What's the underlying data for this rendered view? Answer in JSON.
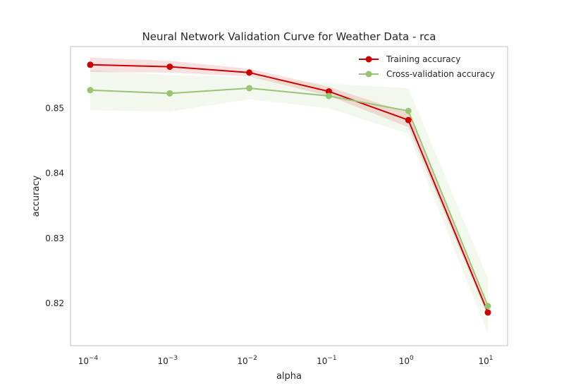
{
  "chart_data": {
    "type": "line",
    "title": "Neural Network Validation Curve for Weather Data - rca",
    "xlabel": "alpha",
    "ylabel": "accuracy",
    "x": [
      0.0001,
      0.001,
      0.01,
      0.1,
      1,
      10
    ],
    "x_scale": "log",
    "x_tick_exponents": [
      "-4",
      "-3",
      "-2",
      "-1",
      "0",
      "1"
    ],
    "x_tick_base": "10",
    "ylim": [
      0.8135,
      0.8595
    ],
    "y_ticks": [
      "0.85",
      "0.84",
      "0.83",
      "0.82"
    ],
    "y_tick_values": [
      0.85,
      0.84,
      0.83,
      0.82
    ],
    "grid": false,
    "legend_position": "top-right",
    "series": [
      {
        "name": "Training accuracy",
        "color": "#cc0000",
        "values": [
          0.8567,
          0.8564,
          0.8555,
          0.8526,
          0.8482,
          0.8186
        ],
        "band_lower": [
          0.8556,
          0.8555,
          0.8549,
          0.8519,
          0.8471,
          0.818
        ],
        "band_upper": [
          0.8578,
          0.8573,
          0.8561,
          0.8533,
          0.8493,
          0.8192
        ]
      },
      {
        "name": "Cross-validation accuracy",
        "color": "#99c474",
        "values": [
          0.8528,
          0.8523,
          0.8531,
          0.8519,
          0.8496,
          0.8196
        ],
        "band_lower": [
          0.8497,
          0.8495,
          0.8514,
          0.85,
          0.8461,
          0.8153
        ],
        "band_upper": [
          0.8559,
          0.8551,
          0.8548,
          0.8538,
          0.8531,
          0.8239
        ]
      }
    ]
  }
}
